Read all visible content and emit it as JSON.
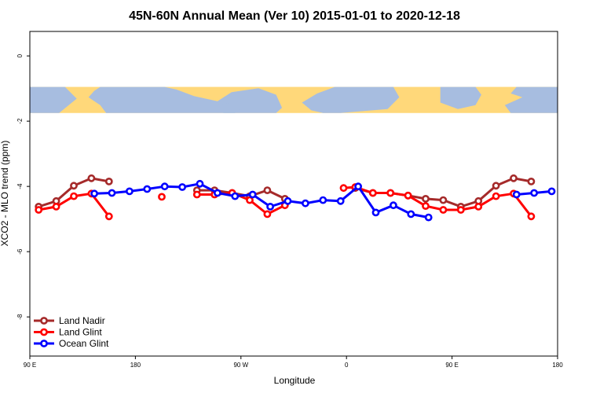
{
  "chart_data": {
    "type": "line",
    "title": "45N-60N Annual Mean (Ver 10)   2015-01-01 to 2020-12-18",
    "xlabel": "Longitude",
    "ylabel": "XCO2 - MLO trend (ppm)",
    "x_unwrapped_range": [
      90,
      510
    ],
    "y_range": [
      -9.2,
      0.75
    ],
    "x_ticks": [
      {
        "value": 90,
        "label": "90 E"
      },
      {
        "value": 180,
        "label": "180"
      },
      {
        "value": 270,
        "label": "90 W"
      },
      {
        "value": 360,
        "label": "0"
      },
      {
        "value": 450,
        "label": "90 E"
      },
      {
        "value": 540,
        "label": "180"
      }
    ],
    "y_ticks": [
      {
        "value": 0,
        "label": "0"
      },
      {
        "value": -2,
        "label": "-2"
      },
      {
        "value": -4,
        "label": "-4"
      },
      {
        "value": -6,
        "label": "-6"
      },
      {
        "value": -8,
        "label": "-8"
      }
    ],
    "map_band": {
      "y_top": -0.95,
      "y_bottom": -1.75,
      "land_color": "#ffd87a",
      "ocean_color": "#a7bde0"
    },
    "legend_position": "bottom-left",
    "series": [
      {
        "name": "Land Nadir",
        "color": "#a52a2a",
        "segments": [
          [
            [
              97.5,
              -4.62
            ],
            [
              112.5,
              -4.45
            ],
            [
              127.5,
              -3.98
            ],
            [
              142.5,
              -3.75
            ],
            [
              157.5,
              -3.85
            ]
          ],
          [
            [
              232.5,
              -4.12
            ],
            [
              247.5,
              -4.12
            ],
            [
              262.5,
              -4.2
            ],
            [
              277.5,
              -4.3
            ],
            [
              292.5,
              -4.12
            ],
            [
              307.5,
              -4.38
            ]
          ],
          [
            [
              367.5,
              -4.05
            ],
            [
              382.5,
              -4.2
            ],
            [
              397.5,
              -4.2
            ],
            [
              412.5,
              -4.28
            ],
            [
              427.5,
              -4.38
            ],
            [
              442.5,
              -4.42
            ],
            [
              457.5,
              -4.62
            ],
            [
              472.5,
              -4.45
            ],
            [
              487.5,
              -3.98
            ],
            [
              502.5,
              -3.75
            ],
            [
              517.5,
              -3.85
            ]
          ]
        ]
      },
      {
        "name": "Land Glint",
        "color": "#ff0000",
        "segments": [
          [
            [
              97.5,
              -4.72
            ],
            [
              112.5,
              -4.62
            ],
            [
              127.5,
              -4.3
            ],
            [
              142.5,
              -4.22
            ],
            [
              157.5,
              -4.92
            ]
          ],
          [
            [
              202.5,
              -4.32
            ]
          ],
          [
            [
              232.5,
              -4.25
            ],
            [
              247.5,
              -4.25
            ],
            [
              262.5,
              -4.2
            ],
            [
              277.5,
              -4.42
            ],
            [
              292.5,
              -4.85
            ],
            [
              307.5,
              -4.58
            ]
          ],
          [
            [
              357.5,
              -4.05
            ],
            [
              367.5,
              -4.02
            ],
            [
              382.5,
              -4.2
            ],
            [
              397.5,
              -4.2
            ],
            [
              412.5,
              -4.28
            ],
            [
              427.5,
              -4.6
            ],
            [
              442.5,
              -4.72
            ],
            [
              457.5,
              -4.72
            ],
            [
              472.5,
              -4.62
            ],
            [
              487.5,
              -4.3
            ],
            [
              502.5,
              -4.22
            ],
            [
              517.5,
              -4.92
            ]
          ]
        ]
      },
      {
        "name": "Ocean Glint",
        "color": "#0000ff",
        "segments": [
          [
            [
              145,
              -4.22
            ],
            [
              160,
              -4.2
            ],
            [
              175,
              -4.15
            ],
            [
              190,
              -4.08
            ],
            [
              205,
              -4.0
            ],
            [
              220,
              -4.02
            ],
            [
              235,
              -3.92
            ],
            [
              250,
              -4.2
            ],
            [
              265,
              -4.3
            ],
            [
              280,
              -4.25
            ],
            [
              295,
              -4.62
            ],
            [
              310,
              -4.45
            ],
            [
              325,
              -4.52
            ],
            [
              340,
              -4.42
            ],
            [
              355,
              -4.45
            ],
            [
              370,
              -4.0
            ],
            [
              385,
              -4.8
            ],
            [
              400,
              -4.58
            ],
            [
              415,
              -4.85
            ],
            [
              430,
              -4.95
            ]
          ],
          [
            [
              505,
              -4.25
            ],
            [
              520,
              -4.2
            ],
            [
              535,
              -4.15
            ]
          ]
        ]
      }
    ]
  }
}
